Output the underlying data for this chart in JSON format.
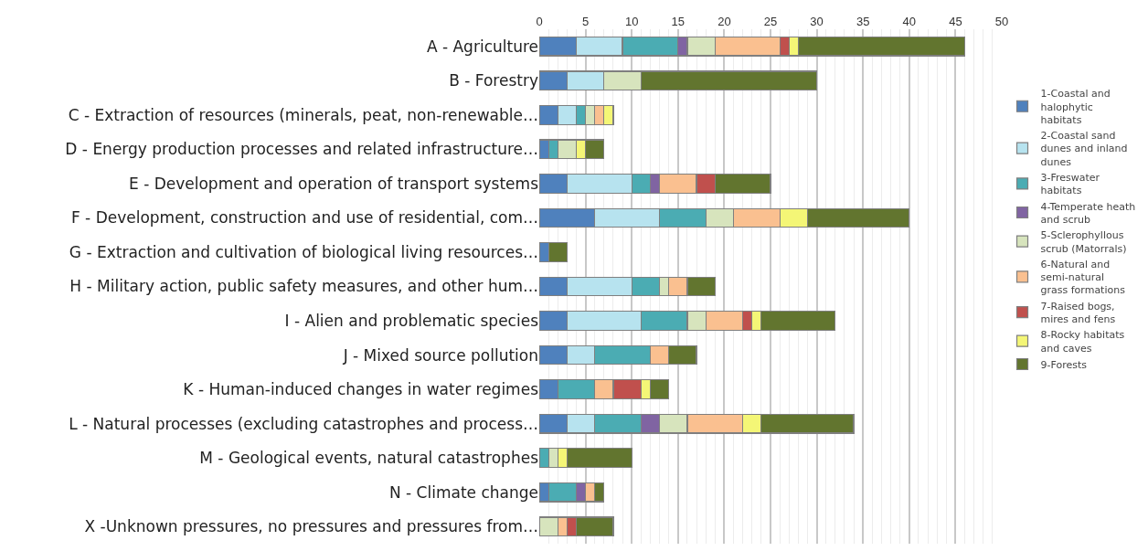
{
  "chart_data": {
    "type": "bar",
    "orientation": "horizontal",
    "stacked": true,
    "categories": [
      "A - Agriculture",
      "B - Forestry",
      "C - Extraction of resources (minerals, peat, non-renewable…",
      "D - Energy production processes and related infrastructure…",
      "E - Development and operation of transport systems",
      "F - Development, construction and use of residential, com…",
      "G - Extraction and cultivation of biological living resources…",
      "H - Military action, public safety measures, and other hum…",
      "I - Alien and problematic species",
      "J - Mixed source pollution",
      "K - Human-induced changes in water regimes",
      "L - Natural processes (excluding catastrophes and process…",
      "M - Geological events, natural catastrophes",
      "N - Climate change",
      "X -Unknown pressures, no pressures and pressures from…"
    ],
    "series": [
      {
        "name": "1-Coastal and halophytic habitats",
        "color": "#4f81bd",
        "values": [
          4,
          3,
          2,
          1,
          3,
          6,
          1,
          3,
          3,
          3,
          2,
          3,
          0,
          1,
          0
        ]
      },
      {
        "name": "2-Coastal sand dunes and inland dunes",
        "color": "#b7e3ef",
        "values": [
          5,
          4,
          2,
          0,
          7,
          7,
          0,
          7,
          8,
          3,
          0,
          3,
          0,
          0,
          0
        ]
      },
      {
        "name": "3-Freswater habitats",
        "color": "#4bacb3",
        "values": [
          6,
          0,
          1,
          1,
          2,
          5,
          0,
          3,
          5,
          6,
          4,
          5,
          1,
          3,
          0
        ]
      },
      {
        "name": "4-Temperate heath and scrub",
        "color": "#8064a2",
        "values": [
          1,
          0,
          0,
          0,
          1,
          0,
          0,
          0,
          0,
          0,
          0,
          2,
          0,
          1,
          0
        ]
      },
      {
        "name": "5-Sclerophyllous scrub (Matorrals)",
        "color": "#d7e4bd",
        "values": [
          3,
          4,
          1,
          2,
          0,
          3,
          0,
          1,
          2,
          0,
          0,
          3,
          1,
          0,
          2
        ]
      },
      {
        "name": "6-Natural and semi-natural grass formations",
        "color": "#fac090",
        "values": [
          7,
          0,
          1,
          0,
          4,
          5,
          0,
          2,
          4,
          2,
          2,
          6,
          0,
          1,
          1
        ]
      },
      {
        "name": "7-Raised bogs, mires and fens",
        "color": "#c0504d",
        "values": [
          1,
          0,
          0,
          0,
          2,
          0,
          0,
          0,
          1,
          0,
          3,
          0,
          0,
          0,
          1
        ]
      },
      {
        "name": "8-Rocky habitats and caves",
        "color": "#f4f676",
        "values": [
          1,
          0,
          1,
          1,
          0,
          3,
          0,
          0,
          1,
          0,
          1,
          2,
          1,
          0,
          0
        ]
      },
      {
        "name": "9-Forests",
        "color": "#62752f",
        "values": [
          18,
          19,
          0,
          2,
          6,
          11,
          2,
          3,
          8,
          3,
          2,
          10,
          7,
          1,
          4
        ]
      }
    ],
    "xlim": [
      0,
      50
    ],
    "xticks": [
      0,
      5,
      10,
      15,
      20,
      25,
      30,
      35,
      40,
      45,
      50
    ],
    "grid": "x",
    "legend": "right"
  }
}
